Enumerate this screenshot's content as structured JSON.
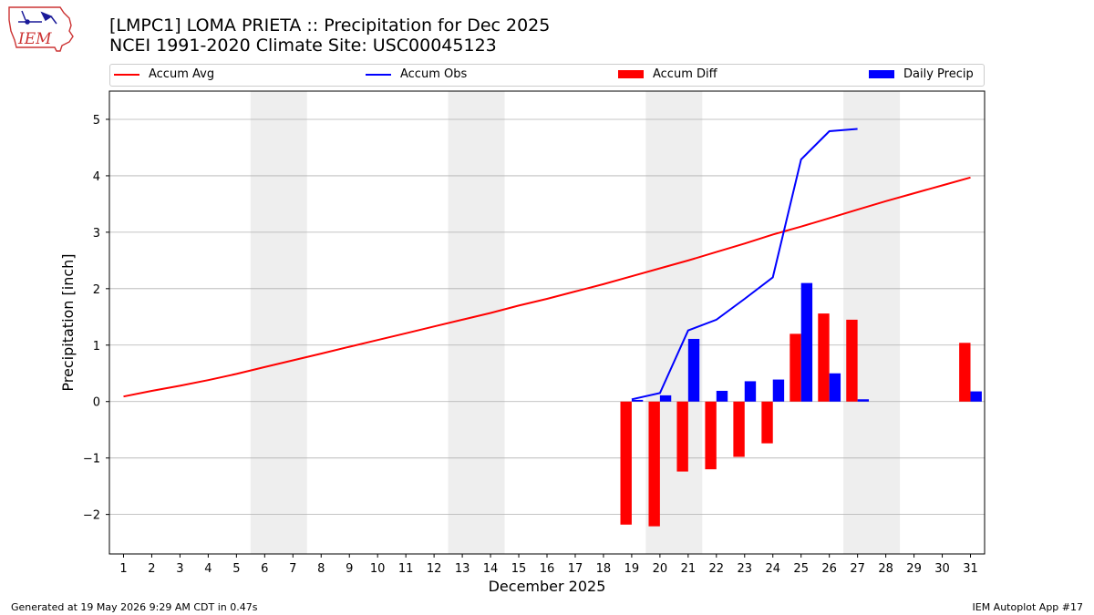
{
  "header": {
    "title_line1": "[LMPC1] LOMA PRIETA :: Precipitation for Dec 2025",
    "title_line2": "NCEI 1991-2020 Climate Site: USC00045123",
    "logo_text": "IEM"
  },
  "footer": {
    "generated": "Generated at 19 May 2026 9:29 AM CDT in 0.47s",
    "app": "IEM Autoplot App #17"
  },
  "colors": {
    "avg": "#ff0000",
    "obs": "#0000ff",
    "diff": "#ff0000",
    "daily": "#0000ff",
    "weekend": "#eeeeee",
    "grid": "#b0b0b0"
  },
  "legend": [
    {
      "label": "Accum Avg",
      "kind": "line",
      "color": "#ff0000"
    },
    {
      "label": "Accum Obs",
      "kind": "line",
      "color": "#0000ff"
    },
    {
      "label": "Accum Diff",
      "kind": "box",
      "color": "#ff0000"
    },
    {
      "label": "Daily Precip",
      "kind": "box",
      "color": "#0000ff"
    }
  ],
  "chart_data": {
    "type": "bar",
    "title": "[LMPC1] LOMA PRIETA :: Precipitation for Dec 2025",
    "subtitle": "NCEI 1991-2020 Climate Site: USC00045123",
    "xlabel": "December 2025",
    "ylabel": "Precipitation [inch]",
    "xlim": [
      0.5,
      31.5
    ],
    "ylim": [
      -2.7,
      5.5
    ],
    "yticks": [
      -2,
      -1,
      0,
      1,
      2,
      3,
      4,
      5
    ],
    "yticklabels": [
      "−2",
      "−1",
      "0",
      "1",
      "2",
      "3",
      "4",
      "5"
    ],
    "x": [
      1,
      2,
      3,
      4,
      5,
      6,
      7,
      8,
      9,
      10,
      11,
      12,
      13,
      14,
      15,
      16,
      17,
      18,
      19,
      20,
      21,
      22,
      23,
      24,
      25,
      26,
      27,
      28,
      29,
      30,
      31
    ],
    "grid": true,
    "weekend_shading": [
      [
        6,
        7
      ],
      [
        13,
        14
      ],
      [
        20,
        21
      ],
      [
        27,
        28
      ]
    ],
    "series": [
      {
        "name": "Accum Avg",
        "kind": "line",
        "x": [
          1,
          2,
          3,
          4,
          5,
          6,
          7,
          8,
          9,
          10,
          11,
          12,
          13,
          14,
          15,
          16,
          17,
          18,
          19,
          20,
          21,
          22,
          23,
          24,
          25,
          26,
          27,
          28,
          29,
          30,
          31
        ],
        "values": [
          0.09,
          0.19,
          0.28,
          0.38,
          0.49,
          0.61,
          0.73,
          0.85,
          0.97,
          1.09,
          1.21,
          1.33,
          1.45,
          1.57,
          1.7,
          1.82,
          1.95,
          2.08,
          2.22,
          2.36,
          2.5,
          2.65,
          2.8,
          2.96,
          3.1,
          3.25,
          3.4,
          3.55,
          3.69,
          3.83,
          3.97
        ]
      },
      {
        "name": "Accum Obs",
        "kind": "line",
        "x": [
          19,
          20,
          21,
          22,
          23,
          24,
          25,
          26,
          27
        ],
        "values": [
          0.04,
          0.15,
          1.26,
          1.45,
          1.82,
          2.2,
          4.29,
          4.79,
          4.83
        ]
      },
      {
        "name": "Accum Diff",
        "kind": "bar",
        "x": [
          19,
          20,
          21,
          22,
          23,
          24,
          25,
          26,
          27,
          31
        ],
        "values": [
          -2.18,
          -2.21,
          -1.24,
          -1.2,
          -0.98,
          -0.74,
          1.2,
          1.56,
          1.45,
          1.04
        ]
      },
      {
        "name": "Daily Precip",
        "kind": "bar",
        "x": [
          19,
          20,
          21,
          22,
          23,
          24,
          25,
          26,
          27,
          31
        ],
        "values": [
          0.03,
          0.11,
          1.11,
          0.19,
          0.36,
          0.39,
          2.1,
          0.5,
          0.04,
          0.18
        ]
      }
    ]
  }
}
